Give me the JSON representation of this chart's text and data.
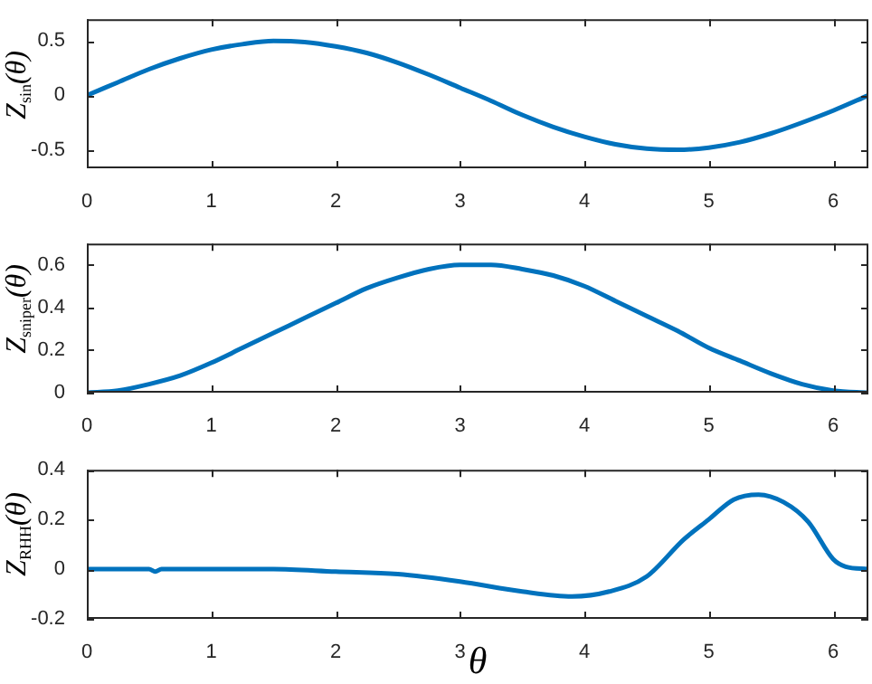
{
  "chart_data": [
    {
      "type": "line",
      "ylabel": "Z$_{sin}$(θ)",
      "x": [
        0,
        0.25,
        0.5,
        0.75,
        1,
        1.25,
        1.5,
        1.75,
        2,
        2.25,
        2.5,
        2.75,
        3,
        3.25,
        3.5,
        3.75,
        4,
        4.25,
        4.5,
        4.75,
        5,
        5.25,
        5.5,
        5.75,
        6,
        6.283
      ],
      "values": [
        0,
        0.12,
        0.24,
        0.34,
        0.42,
        0.47,
        0.5,
        0.49,
        0.45,
        0.39,
        0.3,
        0.19,
        0.07,
        -0.05,
        -0.18,
        -0.29,
        -0.38,
        -0.45,
        -0.49,
        -0.5,
        -0.48,
        -0.43,
        -0.35,
        -0.25,
        -0.14,
        0
      ],
      "color": "#0072bd",
      "xlim": [
        0,
        6.283
      ],
      "xticks": [
        0,
        1,
        2,
        3,
        4,
        5,
        6
      ],
      "ylim": [
        -0.67,
        0.7
      ],
      "yticks": [
        -0.5,
        0,
        0.5
      ]
    },
    {
      "type": "line",
      "ylabel": "Z$_{sniper}$(θ)",
      "x": [
        0,
        0.25,
        0.5,
        0.75,
        1,
        1.25,
        1.5,
        1.75,
        2,
        2.25,
        2.5,
        2.75,
        3,
        3.25,
        3.5,
        3.75,
        4,
        4.25,
        4.5,
        4.75,
        5,
        5.25,
        5.5,
        5.75,
        6,
        6.283
      ],
      "values": [
        0,
        0.01,
        0.04,
        0.08,
        0.14,
        0.21,
        0.28,
        0.35,
        0.42,
        0.49,
        0.54,
        0.58,
        0.6,
        0.6,
        0.58,
        0.55,
        0.5,
        0.43,
        0.36,
        0.29,
        0.21,
        0.15,
        0.09,
        0.04,
        0.01,
        0
      ],
      "color": "#0072bd",
      "xlim": [
        0,
        6.283
      ],
      "xticks": [
        0,
        1,
        2,
        3,
        4,
        5,
        6
      ],
      "ylim": [
        0,
        0.7
      ],
      "yticks": [
        0,
        0.2,
        0.4,
        0.6
      ]
    },
    {
      "type": "line",
      "ylabel": "Z$_{RHH}$(θ)",
      "xlabel": "θ",
      "x": [
        0,
        0.5,
        0.55,
        0.6,
        1,
        1.5,
        2,
        2.5,
        3,
        3.5,
        3.9,
        4.2,
        4.5,
        4.8,
        5,
        5.2,
        5.4,
        5.6,
        5.8,
        6,
        6.1,
        6.283
      ],
      "values": [
        0,
        0,
        -0.01,
        0,
        0,
        0,
        -0.01,
        -0.02,
        -0.05,
        -0.09,
        -0.11,
        -0.09,
        -0.03,
        0.12,
        0.2,
        0.28,
        0.3,
        0.27,
        0.19,
        0.04,
        0.01,
        0
      ],
      "color": "#0072bd",
      "xlim": [
        0,
        6.283
      ],
      "xticks": [
        0,
        1,
        2,
        3,
        4,
        5,
        6
      ],
      "ylim": [
        -0.2,
        0.4
      ],
      "yticks": [
        -0.2,
        0,
        0.2,
        0.4
      ]
    }
  ]
}
